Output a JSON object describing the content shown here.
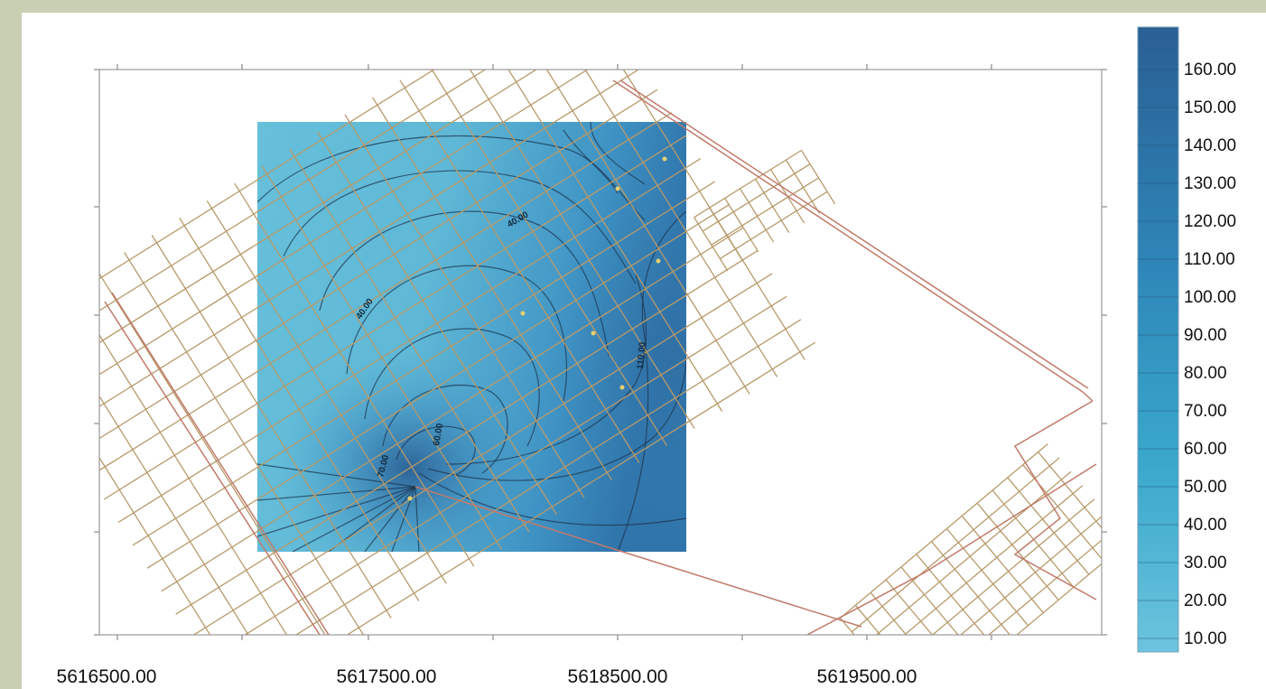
{
  "chart_data": {
    "type": "heatmap",
    "x_ticks": [
      "5616500.00",
      "5617500.00",
      "5618500.00",
      "5619500.00"
    ],
    "colorbar": {
      "labels": [
        "160.00",
        "150.00",
        "140.00",
        "130.00",
        "120.00",
        "110.00",
        "100.00",
        "90.00",
        "80.00",
        "70.00",
        "60.00",
        "50.00",
        "40.00",
        "30.00",
        "20.00",
        "10.00"
      ],
      "min": 10,
      "max": 165,
      "color_low": "#6cc2dc",
      "color_high": "#2a5f94"
    },
    "contour_labels": [
      {
        "text": "40.00"
      },
      {
        "text": "40.00"
      },
      {
        "text": "110.00"
      },
      {
        "text": "60.00"
      },
      {
        "text": "70.00"
      }
    ]
  },
  "colors": {
    "page_background": "#c9cfb3",
    "plot_background": "#ffffff",
    "parcel_lines": "#b79a6a",
    "road_lines": "#c07a6a",
    "contour_lines": "#1e3550"
  }
}
